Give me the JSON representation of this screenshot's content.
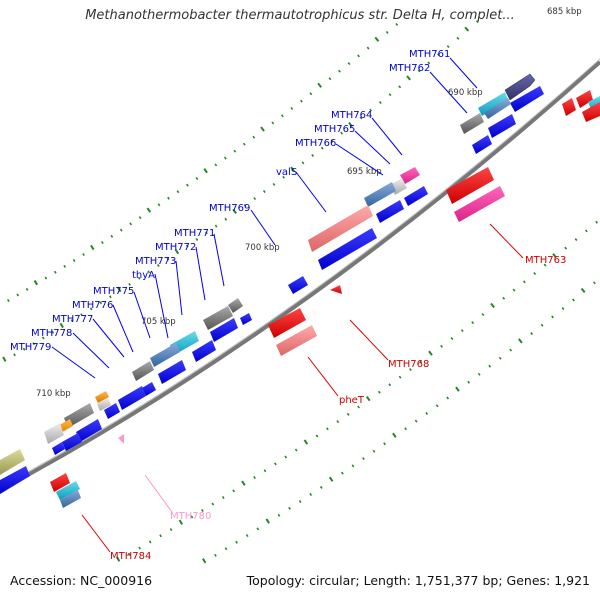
{
  "title": "Methanothermobacter thermautotrophicus str. Delta H, complet...",
  "footer": {
    "accession": "Accession: NC_000916",
    "summary": "Topology: circular; Length: 1,751,377 bp; Genes: 1,921"
  },
  "ticks": [
    "685 kbp",
    "690 kbp",
    "695 kbp",
    "700 kbp",
    "705 kbp",
    "710 kbp"
  ],
  "labels": {
    "top": [
      "MTH761",
      "MTH762",
      "MTH764",
      "MTH765",
      "MTH766",
      "valS",
      "MTH769",
      "MTH771",
      "MTH772",
      "MTH773",
      "thyA",
      "MTH775",
      "MTH776",
      "MTH777",
      "MTH778",
      "MTH779"
    ],
    "bottom": [
      "MTH763",
      "MTH768",
      "pheT",
      "MTH780",
      "MTH784"
    ]
  },
  "colors": {
    "forward": "#0000ee",
    "label_blue": "#0000cc",
    "label_red": "#cc0000",
    "label_pink": "#ff99cc",
    "backbone": "#888888",
    "tick": "#228822"
  }
}
